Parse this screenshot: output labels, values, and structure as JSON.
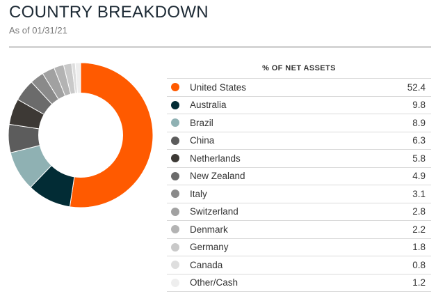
{
  "header": {
    "title": "COUNTRY BREAKDOWN",
    "subtitle": "As of 01/31/21"
  },
  "chart_data": {
    "type": "pie",
    "variant": "donut",
    "column_header": "% OF NET ASSETS",
    "categories": [
      "United States",
      "Australia",
      "Brazil",
      "China",
      "Netherlands",
      "New Zealand",
      "Italy",
      "Switzerland",
      "Denmark",
      "Germany",
      "Canada",
      "Other/Cash"
    ],
    "values": [
      52.4,
      9.8,
      8.9,
      6.3,
      5.8,
      4.9,
      3.1,
      2.8,
      2.2,
      1.8,
      0.8,
      1.2
    ],
    "value_labels": [
      "52.4",
      "9.8",
      "8.9",
      "6.3",
      "5.8",
      "4.9",
      "3.1",
      "2.8",
      "2.2",
      "1.8",
      "0.8",
      "1.2"
    ],
    "colors": [
      "#ff5a00",
      "#022c35",
      "#8fb1b3",
      "#5c5c5c",
      "#3d3935",
      "#6b6b6b",
      "#8a8a8a",
      "#a1a1a1",
      "#b3b3b3",
      "#c9c9c9",
      "#dedede",
      "#eeeeee"
    ],
    "legend_placement": "right"
  }
}
